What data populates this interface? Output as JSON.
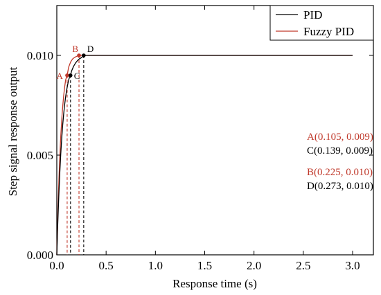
{
  "chart_data": {
    "type": "line",
    "xlabel": "Response time (s)",
    "ylabel": "Step signal response output",
    "xlim": [
      0,
      3.0
    ],
    "ylim": [
      0,
      0.0125
    ],
    "x_ticks": [
      "0.0",
      "0.5",
      "1.0",
      "1.5",
      "2.0",
      "2.5",
      "3.0"
    ],
    "x_tick_values": [
      0,
      0.5,
      1.0,
      1.5,
      2.0,
      2.5,
      3.0
    ],
    "y_ticks": [
      "0.000",
      "0.005",
      "0.010"
    ],
    "y_tick_values": [
      0,
      0.005,
      0.01
    ],
    "grid": false,
    "legend_position": "top-right",
    "series": [
      {
        "name": "PID",
        "color": "#000000",
        "x": [
          0,
          0.01,
          0.02,
          0.03,
          0.04,
          0.05,
          0.06,
          0.07,
          0.08,
          0.09,
          0.1,
          0.11,
          0.12,
          0.13,
          0.139,
          0.15,
          0.17,
          0.19,
          0.21,
          0.23,
          0.25,
          0.273,
          0.3,
          0.35,
          0.4,
          0.5,
          1.0,
          1.5,
          2.0,
          2.5,
          3.0
        ],
        "y": [
          0,
          0.00158,
          0.00293,
          0.00408,
          0.00505,
          0.00585,
          0.00652,
          0.00708,
          0.00755,
          0.00794,
          0.00826,
          0.00853,
          0.00876,
          0.00893,
          0.009,
          0.00922,
          0.00945,
          0.00962,
          0.00974,
          0.00983,
          0.00989,
          0.01,
          0.01,
          0.01,
          0.01,
          0.01,
          0.01,
          0.01,
          0.01,
          0.01,
          0.01
        ]
      },
      {
        "name": "Fuzzy PID",
        "color": "#c0392b",
        "x": [
          0,
          0.01,
          0.02,
          0.03,
          0.04,
          0.05,
          0.06,
          0.07,
          0.08,
          0.09,
          0.105,
          0.12,
          0.14,
          0.16,
          0.18,
          0.2,
          0.225,
          0.25,
          0.3,
          0.4,
          0.5,
          1.0,
          1.5,
          2.0,
          2.5,
          3.0
        ],
        "y": [
          0,
          0.00196,
          0.00356,
          0.00487,
          0.00593,
          0.00677,
          0.00745,
          0.00799,
          0.00843,
          0.00878,
          0.009,
          0.00941,
          0.00967,
          0.00982,
          0.0099,
          0.00995,
          0.01,
          0.01,
          0.01,
          0.01,
          0.01,
          0.01,
          0.01,
          0.01,
          0.01,
          0.01
        ]
      }
    ],
    "points": [
      {
        "label": "A",
        "x": 0.105,
        "y": 0.009,
        "color": "#c0392b"
      },
      {
        "label": "B",
        "x": 0.225,
        "y": 0.01,
        "color": "#c0392b"
      },
      {
        "label": "C",
        "x": 0.139,
        "y": 0.009,
        "color": "#000000"
      },
      {
        "label": "D",
        "x": 0.273,
        "y": 0.01,
        "color": "#000000"
      }
    ],
    "annotations": [
      {
        "text": "A(0.105, 0.009)",
        "color": "#c0392b"
      },
      {
        "text": "C(0.139, 0.009)",
        "color": "#000000"
      },
      {
        "text": "B(0.225, 0.010)",
        "color": "#c0392b"
      },
      {
        "text": "D(0.273, 0.010)",
        "color": "#000000"
      }
    ]
  }
}
